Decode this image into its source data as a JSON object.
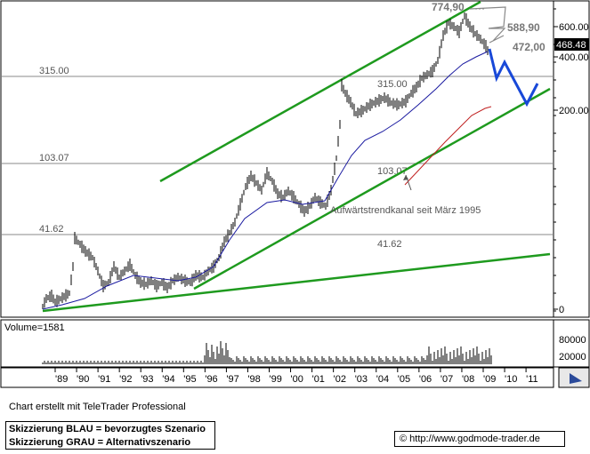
{
  "chart_data": {
    "type": "candlestick",
    "price_axis": {
      "ticks": [
        "600.00",
        "400.00",
        "200.00",
        "0"
      ],
      "current_price_label": "468.48"
    },
    "x_axis": {
      "tick_labels": [
        "'89",
        "'90",
        "'91",
        "'92",
        "'93",
        "'94",
        "'95",
        "'96",
        "'97",
        "'98",
        "'99",
        "'00",
        "'01",
        "'02",
        "'03",
        "'04",
        "'05",
        "'06",
        "'07",
        "'08",
        "'09",
        "'10",
        "'11"
      ]
    },
    "horizontal_levels": [
      {
        "value": 315.0,
        "left_label": "315.00",
        "mid_label": "315.00"
      },
      {
        "value": 103.07,
        "left_label": "103.07",
        "mid_label": "103.07"
      },
      {
        "value": 41.62,
        "left_label": "41.62",
        "mid_label": "41.62"
      }
    ],
    "annotations": {
      "high_label": "774,90",
      "target_1": "588,90",
      "target_2": "472,00",
      "trend_channel_label": "Aufwärtstrendkanal seit März 1995"
    },
    "volume": {
      "label": "Volume=1581",
      "ticks": [
        "80000",
        "20000"
      ]
    },
    "colors": {
      "price": "#000000",
      "moving_average_1": "#1a1aa0",
      "moving_average_2": "#c02020",
      "trend_lines": "#1e9a1e",
      "scenario_blue": "#1848d8",
      "scenario_grey": "#888888",
      "grid": "#888888"
    }
  },
  "footer": {
    "credit": "Chart erstellt mit TeleTrader Professional",
    "legend_line1": "Skizzierung BLAU = bevorzugtes Szenario",
    "legend_line2": "Skizzierung GRAU = Alternativszenario",
    "url": "© http://www.godmode-trader.de"
  }
}
